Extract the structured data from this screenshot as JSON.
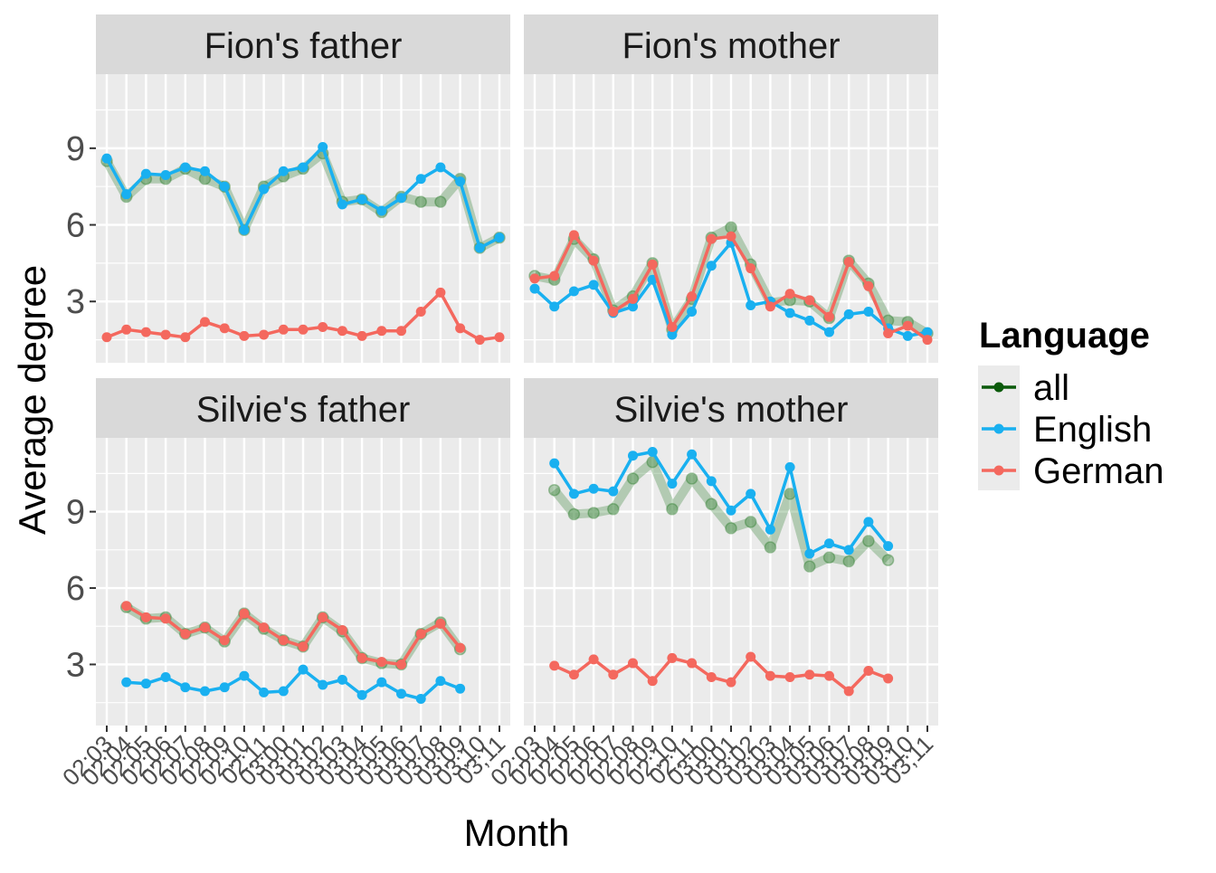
{
  "chart_data": {
    "type": "line",
    "facet_layout": "2x2",
    "xlabel": "Month",
    "ylabel": "Average degree",
    "yticks": [
      3,
      6,
      9
    ],
    "ylim": [
      0.6,
      11.9
    ],
    "x_categories": [
      "02;03",
      "02;04",
      "02;05",
      "02;06",
      "02;07",
      "02;08",
      "02;09",
      "02;10",
      "02;11",
      "03;00",
      "03;01",
      "03;02",
      "03;03",
      "03;04",
      "03;05",
      "03;06",
      "03;07",
      "03;08",
      "03;09",
      "03;10",
      "03;11"
    ],
    "legend": {
      "title": "Language",
      "position": "right",
      "entries": [
        {
          "name": "all",
          "color": "#0B5A0B"
        },
        {
          "name": "English",
          "color": "#19B0F0"
        },
        {
          "name": "German",
          "color": "#F4685E"
        }
      ]
    },
    "panels": [
      {
        "title": "Fion's father",
        "start_index": 0,
        "series": [
          {
            "name": "all",
            "values": [
              8.5,
              7.1,
              7.8,
              7.8,
              8.2,
              7.8,
              7.5,
              5.8,
              7.5,
              7.9,
              8.2,
              8.8,
              6.9,
              7.0,
              6.5,
              7.1,
              6.9,
              6.9,
              7.8,
              5.1,
              5.5
            ]
          },
          {
            "name": "English",
            "values": [
              8.6,
              7.2,
              8.0,
              7.95,
              8.25,
              8.1,
              7.5,
              5.8,
              7.4,
              8.1,
              8.25,
              9.05,
              6.8,
              7.0,
              6.55,
              7.05,
              7.8,
              8.25,
              7.7,
              5.1,
              5.5
            ]
          },
          {
            "name": "German",
            "values": [
              1.6,
              1.9,
              1.8,
              1.7,
              1.6,
              2.2,
              1.95,
              1.65,
              1.7,
              1.9,
              1.9,
              2.0,
              1.85,
              1.65,
              1.85,
              1.85,
              2.6,
              3.35,
              1.95,
              1.5,
              1.6
            ]
          }
        ]
      },
      {
        "title": "Fion's mother",
        "start_index": 0,
        "series": [
          {
            "name": "all",
            "values": [
              4.0,
              3.85,
              5.45,
              4.65,
              2.65,
              3.2,
              4.5,
              1.9,
              3.1,
              5.5,
              5.9,
              4.45,
              2.95,
              3.05,
              3.0,
              2.35,
              4.6,
              3.7,
              2.25,
              2.2,
              1.75
            ]
          },
          {
            "name": "English",
            "values": [
              3.5,
              2.8,
              3.4,
              3.65,
              2.55,
              2.8,
              3.85,
              1.7,
              2.6,
              4.4,
              5.3,
              2.85,
              3.0,
              2.55,
              2.25,
              1.8,
              2.5,
              2.6,
              1.95,
              1.65,
              1.8
            ]
          },
          {
            "name": "German",
            "values": [
              3.9,
              4.0,
              5.6,
              4.6,
              2.6,
              3.1,
              4.45,
              2.0,
              3.2,
              5.45,
              5.55,
              4.3,
              2.8,
              3.3,
              3.05,
              2.4,
              4.55,
              3.6,
              1.75,
              2.05,
              1.5
            ]
          }
        ]
      },
      {
        "title": "Silvie's father",
        "start_index": 1,
        "series": [
          {
            "name": "all",
            "values": [
              5.25,
              4.8,
              4.85,
              4.2,
              4.45,
              3.9,
              5.0,
              4.4,
              3.95,
              3.7,
              4.85,
              4.3,
              3.25,
              3.05,
              3.0,
              4.2,
              4.65,
              3.6
            ]
          },
          {
            "name": "English",
            "values": [
              2.3,
              2.25,
              2.5,
              2.1,
              1.95,
              2.1,
              2.55,
              1.9,
              1.95,
              2.8,
              2.2,
              2.4,
              1.8,
              2.3,
              1.85,
              1.65,
              2.35,
              2.05
            ]
          },
          {
            "name": "German",
            "values": [
              5.3,
              4.85,
              4.8,
              4.2,
              4.45,
              3.95,
              5.0,
              4.45,
              3.95,
              3.7,
              4.85,
              4.35,
              3.25,
              3.1,
              3.0,
              4.2,
              4.6,
              3.65
            ]
          }
        ]
      },
      {
        "title": "Silvie's mother",
        "start_index": 1,
        "series": [
          {
            "name": "all",
            "values": [
              9.85,
              8.9,
              8.95,
              9.1,
              10.3,
              10.95,
              9.1,
              10.3,
              9.3,
              8.35,
              8.6,
              7.6,
              9.7,
              6.85,
              7.2,
              7.05,
              7.85,
              7.1
            ]
          },
          {
            "name": "English",
            "values": [
              10.9,
              9.7,
              9.9,
              9.8,
              11.2,
              11.35,
              10.1,
              11.25,
              10.2,
              9.05,
              9.7,
              8.3,
              10.75,
              7.35,
              7.75,
              7.5,
              8.6,
              7.65
            ]
          },
          {
            "name": "German",
            "values": [
              2.95,
              2.6,
              3.2,
              2.6,
              3.05,
              2.35,
              3.25,
              3.05,
              2.5,
              2.3,
              3.3,
              2.55,
              2.5,
              2.6,
              2.55,
              1.95,
              2.75,
              2.45
            ]
          }
        ]
      }
    ]
  }
}
